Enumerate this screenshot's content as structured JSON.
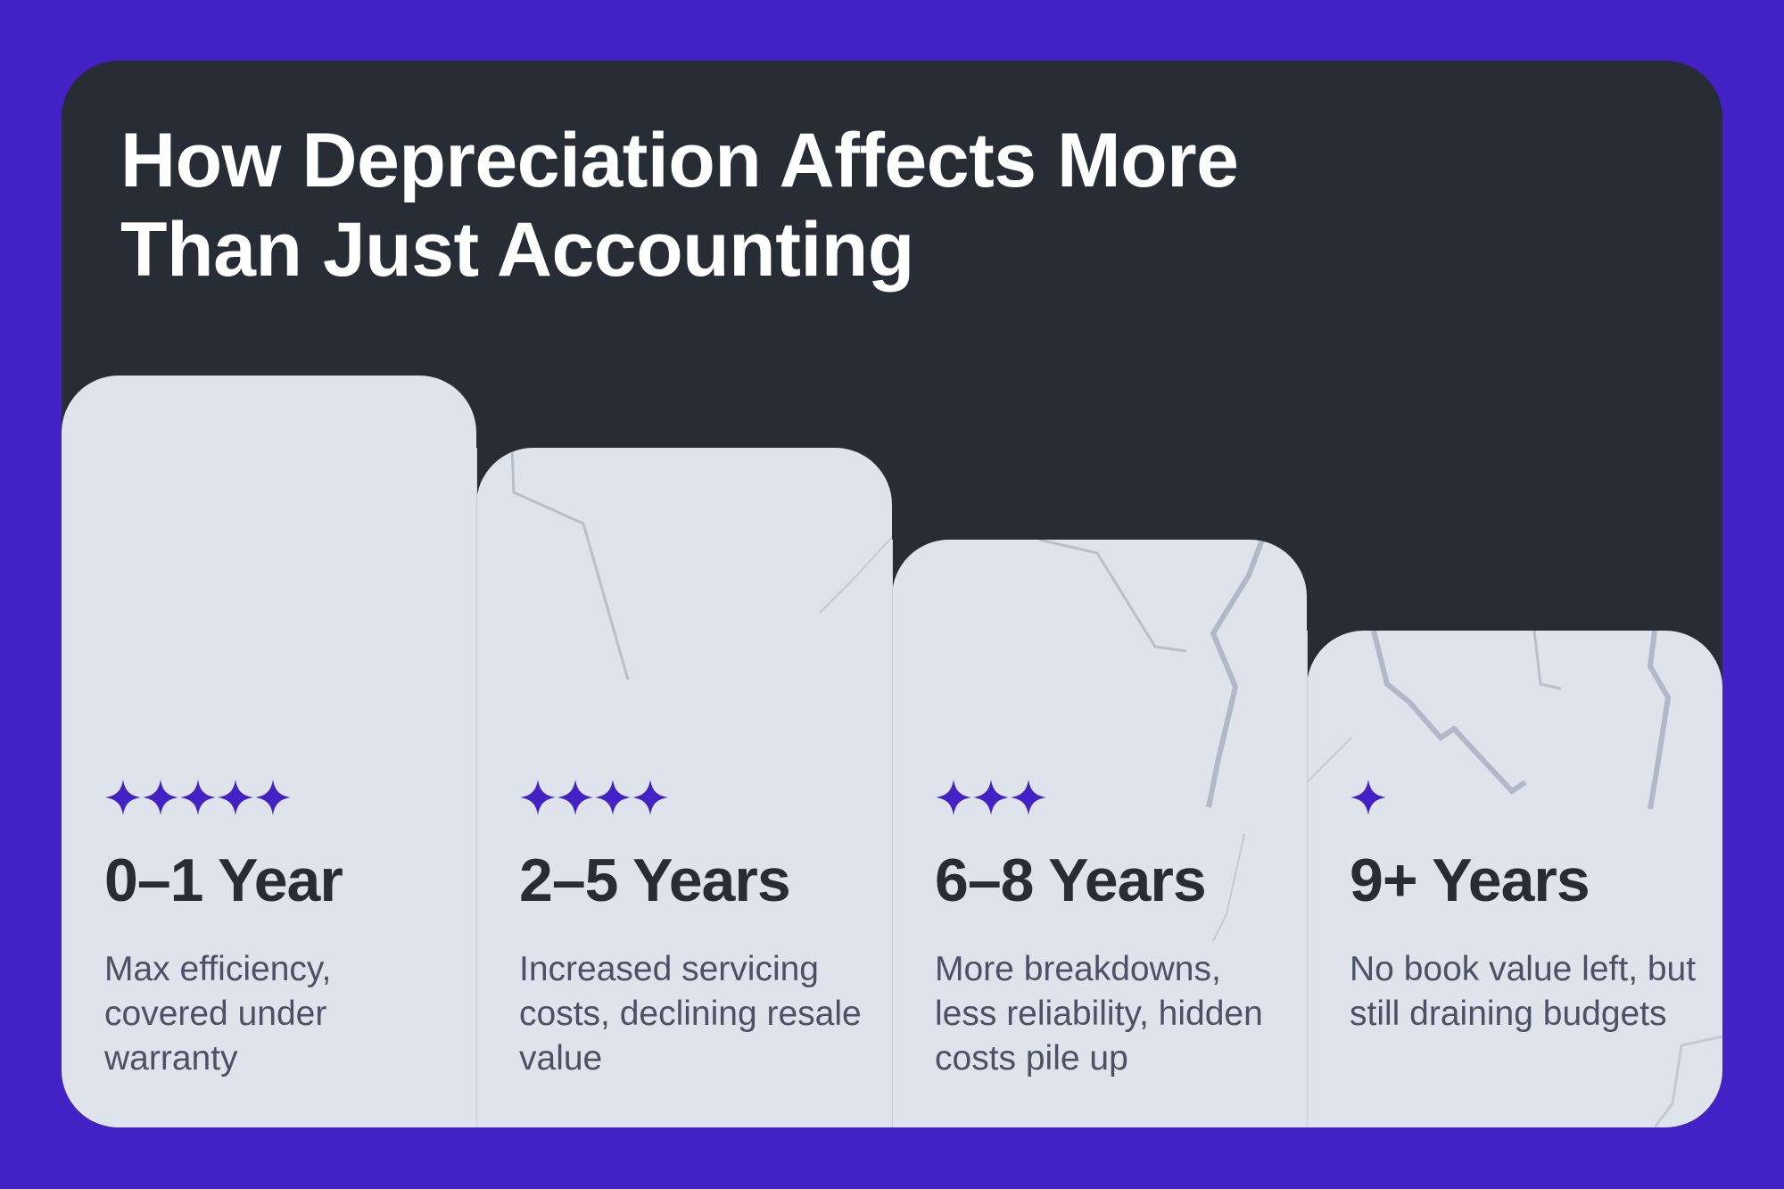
{
  "title": {
    "line1": "How Depreciation Affects More",
    "line2": "Than Just Accounting"
  },
  "colors": {
    "background": "#4222c4",
    "card": "#272c35",
    "column": "#dfe3ec",
    "star": "#4222c4",
    "crack": "#b8c0cc"
  },
  "stages": [
    {
      "period": "0–1 Year",
      "stars": 5,
      "description": "Max efficiency, covered under warranty"
    },
    {
      "period": "2–5 Years",
      "stars": 4,
      "description": "Increased servicing costs, declining resale value"
    },
    {
      "period": "6–8 Years",
      "stars": 3,
      "description": "More breakdowns, less reliability, hidden costs pile up"
    },
    {
      "period": "9+ Years",
      "stars": 1,
      "description": "No book value left, but still draining budgets"
    }
  ]
}
